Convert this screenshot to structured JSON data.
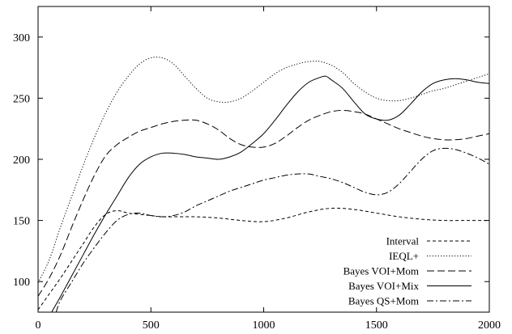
{
  "chart_data": {
    "type": "line",
    "title": "",
    "xlabel": "",
    "ylabel": "",
    "xlim": [
      0,
      2000
    ],
    "ylim": [
      75,
      325
    ],
    "xticks": [
      0,
      500,
      1000,
      1500,
      2000
    ],
    "yticks": [
      100,
      150,
      200,
      250,
      300
    ],
    "xtick_labels": [
      "0",
      "500",
      "1000",
      "1500",
      "2000"
    ],
    "ytick_labels": [
      "100",
      "150",
      "200",
      "250",
      "300"
    ],
    "grid": false,
    "legend_position": "bottom-right",
    "series": [
      {
        "name": "Interval",
        "dash": "short-dash",
        "x": [
          0,
          50,
          100,
          150,
          200,
          250,
          300,
          350,
          400,
          450,
          500,
          550,
          600,
          700,
          800,
          900,
          1000,
          1100,
          1200,
          1300,
          1400,
          1500,
          1600,
          1700,
          1800,
          1900,
          2000
        ],
        "y": [
          77,
          90,
          103,
          117,
          131,
          145,
          155,
          158,
          156,
          155,
          154,
          153,
          153,
          153,
          152,
          150,
          149,
          152,
          157,
          160,
          159,
          156,
          153,
          151,
          150,
          150,
          150
        ]
      },
      {
        "name": "IEQL+",
        "dash": "dotted",
        "x": [
          0,
          50,
          100,
          150,
          200,
          250,
          300,
          350,
          400,
          450,
          500,
          550,
          600,
          650,
          700,
          750,
          800,
          850,
          900,
          950,
          1000,
          1050,
          1100,
          1150,
          1200,
          1250,
          1300,
          1350,
          1400,
          1450,
          1500,
          1550,
          1600,
          1650,
          1700,
          1750,
          1800,
          1850,
          1900,
          1950,
          2000
        ],
        "y": [
          99,
          118,
          145,
          170,
          195,
          218,
          238,
          255,
          268,
          278,
          283,
          283,
          278,
          268,
          258,
          250,
          247,
          247,
          250,
          256,
          263,
          270,
          275,
          278,
          280,
          280,
          277,
          271,
          262,
          255,
          250,
          248,
          248,
          250,
          253,
          256,
          258,
          261,
          264,
          267,
          270
        ]
      },
      {
        "name": "Bayes VOI+Mom",
        "dash": "long-dash",
        "x": [
          0,
          50,
          100,
          150,
          200,
          250,
          300,
          350,
          400,
          450,
          500,
          550,
          600,
          650,
          700,
          750,
          800,
          850,
          900,
          950,
          1000,
          1050,
          1100,
          1150,
          1200,
          1250,
          1300,
          1350,
          1400,
          1450,
          1500,
          1550,
          1600,
          1650,
          1700,
          1750,
          1800,
          1850,
          1900,
          1950,
          2000
        ],
        "y": [
          88,
          103,
          122,
          145,
          167,
          187,
          203,
          212,
          218,
          223,
          226,
          229,
          231,
          232,
          232,
          229,
          224,
          217,
          212,
          210,
          210,
          213,
          219,
          226,
          232,
          236,
          239,
          240,
          239,
          237,
          233,
          229,
          225,
          222,
          219,
          217,
          216,
          216,
          217,
          219,
          221
        ]
      },
      {
        "name": "Bayes VOI+Mix",
        "dash": "solid",
        "x": [
          60,
          100,
          150,
          200,
          250,
          300,
          350,
          400,
          450,
          500,
          550,
          600,
          650,
          700,
          750,
          800,
          850,
          900,
          950,
          1000,
          1050,
          1100,
          1150,
          1200,
          1250,
          1275,
          1300,
          1350,
          1400,
          1450,
          1500,
          1550,
          1600,
          1650,
          1700,
          1750,
          1800,
          1850,
          1900,
          1950,
          2000
        ],
        "y": [
          75,
          88,
          105,
          122,
          139,
          155,
          170,
          185,
          196,
          202,
          205,
          205,
          204,
          202,
          201,
          200,
          202,
          206,
          213,
          221,
          232,
          244,
          255,
          263,
          267,
          268,
          265,
          258,
          247,
          237,
          233,
          232,
          236,
          245,
          255,
          262,
          265,
          266,
          265,
          263,
          262
        ]
      },
      {
        "name": "Bayes QS+Mom",
        "dash": "dash-dot",
        "x": [
          80,
          100,
          150,
          200,
          250,
          300,
          350,
          400,
          450,
          500,
          550,
          600,
          650,
          700,
          750,
          800,
          850,
          900,
          950,
          1000,
          1050,
          1100,
          1150,
          1200,
          1250,
          1300,
          1350,
          1400,
          1450,
          1500,
          1550,
          1600,
          1650,
          1700,
          1750,
          1800,
          1850,
          1900,
          1950,
          2000
        ],
        "y": [
          75,
          85,
          100,
          115,
          128,
          140,
          150,
          155,
          156,
          154,
          153,
          154,
          157,
          162,
          166,
          170,
          174,
          177,
          180,
          183,
          185,
          187,
          188,
          188,
          186,
          184,
          181,
          177,
          173,
          171,
          173,
          180,
          190,
          200,
          207,
          209,
          208,
          205,
          201,
          196
        ]
      }
    ]
  }
}
